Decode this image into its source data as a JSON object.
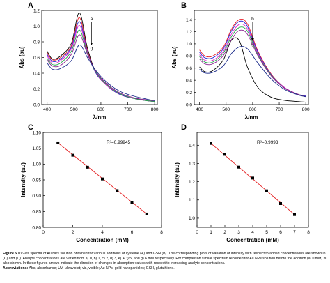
{
  "panels": {
    "A": {
      "letter": "A",
      "xlabel": "λ/nm",
      "ylabel": "Abs (au)",
      "ylim": [
        0.0,
        1.2
      ],
      "xlim": [
        380,
        810
      ],
      "xticks": [
        400,
        500,
        600,
        700,
        800
      ],
      "yticks": [
        0.0,
        0.2,
        0.4,
        0.6,
        0.8,
        1.0,
        1.2
      ],
      "arrow_top": "a",
      "arrow_bottom": "g"
    },
    "B": {
      "letter": "B",
      "xlabel": "λ/nm",
      "ylabel": "Abs (au)",
      "ylim": [
        0.0,
        1.55
      ],
      "xlim": [
        380,
        810
      ],
      "xticks": [
        400,
        500,
        600,
        700,
        800
      ],
      "yticks": [
        0.0,
        0.2,
        0.4,
        0.6,
        0.8,
        1.0,
        1.2,
        1.4
      ],
      "arrow_top": "b",
      "arrow_bottom": "g"
    },
    "C": {
      "letter": "C",
      "xlabel": "Concentration (mM)",
      "ylabel": "Intensity (au)",
      "annotation": "R²=0.99945",
      "xlim": [
        0,
        8
      ],
      "ylim": [
        0.8,
        1.1
      ],
      "xticks": [
        0,
        2,
        4,
        6,
        8
      ],
      "yticks": [
        0.8,
        0.85,
        0.9,
        0.95,
        1.0,
        1.05,
        1.1
      ]
    },
    "D": {
      "letter": "D",
      "xlabel": "Concentration (mM)",
      "ylabel": "Intensity (au)",
      "annotation": "R²=0.9993",
      "xlim": [
        0,
        8
      ],
      "ylim": [
        0.95,
        1.47
      ],
      "xticks": [
        0,
        1,
        2,
        3,
        4,
        5,
        6,
        7,
        8
      ],
      "yticks": [
        1.0,
        1.1,
        1.2,
        1.3,
        1.4
      ]
    }
  },
  "colors": {
    "spectra": [
      "#000000",
      "#e8202a",
      "#2a2ad8",
      "#e020d0",
      "#20a848",
      "#8a2090",
      "#1a2a8a"
    ],
    "fit_line": "#e41a1c",
    "points": "#000000"
  },
  "chart_data": [
    {
      "type": "line",
      "panel": "A",
      "xlabel": "λ/nm",
      "ylabel": "Abs (au)",
      "xlim": [
        380,
        810
      ],
      "ylim": [
        0.0,
        1.2
      ],
      "peak_x": 520,
      "series": [
        {
          "name": "a",
          "values": [
            0.68,
            0.58,
            0.62,
            0.78,
            1.17,
            0.72,
            0.42,
            0.25,
            0.13,
            0.08,
            0.05,
            0.04
          ]
        },
        {
          "name": "b",
          "values": [
            0.66,
            0.57,
            0.6,
            0.75,
            1.11,
            0.69,
            0.41,
            0.25,
            0.13,
            0.08,
            0.05,
            0.04
          ]
        },
        {
          "name": "c",
          "values": [
            0.64,
            0.55,
            0.58,
            0.73,
            1.06,
            0.67,
            0.41,
            0.25,
            0.13,
            0.08,
            0.05,
            0.04
          ]
        },
        {
          "name": "d",
          "values": [
            0.62,
            0.53,
            0.56,
            0.71,
            1.01,
            0.66,
            0.42,
            0.25,
            0.14,
            0.08,
            0.05,
            0.04
          ]
        },
        {
          "name": "e",
          "values": [
            0.59,
            0.51,
            0.53,
            0.68,
            0.95,
            0.65,
            0.42,
            0.26,
            0.14,
            0.08,
            0.05,
            0.04
          ]
        },
        {
          "name": "f",
          "values": [
            0.57,
            0.49,
            0.5,
            0.64,
            0.89,
            0.64,
            0.43,
            0.27,
            0.15,
            0.09,
            0.06,
            0.05
          ]
        },
        {
          "name": "g",
          "values": [
            0.53,
            0.45,
            0.46,
            0.56,
            0.76,
            0.6,
            0.44,
            0.29,
            0.17,
            0.11,
            0.07,
            0.05
          ]
        }
      ],
      "x": [
        400,
        420,
        450,
        490,
        520,
        550,
        580,
        620,
        670,
        720,
        770,
        800
      ]
    },
    {
      "type": "line",
      "panel": "B",
      "xlabel": "λ/nm",
      "ylabel": "Abs (au)",
      "xlim": [
        380,
        810
      ],
      "ylim": [
        0.0,
        1.55
      ],
      "series": [
        {
          "name": "a",
          "values": [
            0.62,
            0.54,
            0.56,
            0.74,
            1.06,
            1.05,
            0.62,
            0.28,
            0.12,
            0.07,
            0.05,
            0.04
          ]
        },
        {
          "name": "b",
          "values": [
            0.9,
            0.8,
            0.8,
            0.95,
            1.24,
            1.4,
            1.33,
            0.88,
            0.5,
            0.28,
            0.17,
            0.14
          ]
        },
        {
          "name": "c",
          "values": [
            0.86,
            0.77,
            0.77,
            0.92,
            1.21,
            1.37,
            1.29,
            0.86,
            0.49,
            0.28,
            0.17,
            0.14
          ]
        },
        {
          "name": "d",
          "values": [
            0.82,
            0.73,
            0.73,
            0.88,
            1.16,
            1.32,
            1.25,
            0.84,
            0.48,
            0.28,
            0.17,
            0.13
          ]
        },
        {
          "name": "e",
          "values": [
            0.79,
            0.7,
            0.7,
            0.85,
            1.12,
            1.27,
            1.21,
            0.82,
            0.48,
            0.27,
            0.17,
            0.13
          ]
        },
        {
          "name": "f",
          "values": [
            0.75,
            0.67,
            0.67,
            0.81,
            1.07,
            1.22,
            1.16,
            0.8,
            0.47,
            0.27,
            0.17,
            0.13
          ]
        },
        {
          "name": "g",
          "values": [
            0.58,
            0.52,
            0.53,
            0.64,
            0.84,
            0.95,
            0.92,
            0.68,
            0.42,
            0.25,
            0.16,
            0.13
          ]
        }
      ],
      "x": [
        400,
        420,
        450,
        490,
        520,
        550,
        580,
        620,
        670,
        720,
        770,
        800
      ]
    },
    {
      "type": "scatter",
      "panel": "C",
      "xlabel": "Concentration (mM)",
      "ylabel": "Intensity (au)",
      "annotation": "R²=0.99945",
      "x": [
        1,
        2,
        3,
        4,
        5,
        6,
        7
      ],
      "values": [
        1.067,
        1.028,
        0.99,
        0.953,
        0.916,
        0.878,
        0.842
      ],
      "fit": {
        "x": [
          1,
          7
        ],
        "y": [
          1.067,
          0.842
        ]
      }
    },
    {
      "type": "scatter",
      "panel": "D",
      "xlabel": "Concentration (mM)",
      "ylabel": "Intensity (au)",
      "annotation": "R²=0.9993",
      "x": [
        1,
        2,
        3,
        4,
        5,
        6,
        7
      ],
      "values": [
        1.41,
        1.35,
        1.28,
        1.22,
        1.15,
        1.08,
        1.02
      ],
      "fit": {
        "x": [
          1,
          7
        ],
        "y": [
          1.41,
          1.02
        ]
      }
    }
  ],
  "caption": {
    "figure_label": "Figure 5",
    "text": " UV–vis spectra of Au NPs solution obtained for various additions of cysteine (A) and GSH (B). The corresponding plots of variation of intensity with respect to added concentrations are shown in (C) and (D). Analyte concentrations are varied from a) 0, b) 1, c) 2, d) 3, e) 4, f) 5, and g) 6 mM respectively. For comparison similar spectrum recorded for Au NPs solution before the addition (a; 0 mM) is also shown. In these figures arrows indicate the direction of changes in absorption values with respect to increasing analyte concentrations.",
    "abbrev_label": "Abbreviations:",
    "abbrev_text": " Abs, absorbance; UV, ultraviolet; vis, visible; Au NPs, gold nanoparticles; GSH, glutathione."
  }
}
